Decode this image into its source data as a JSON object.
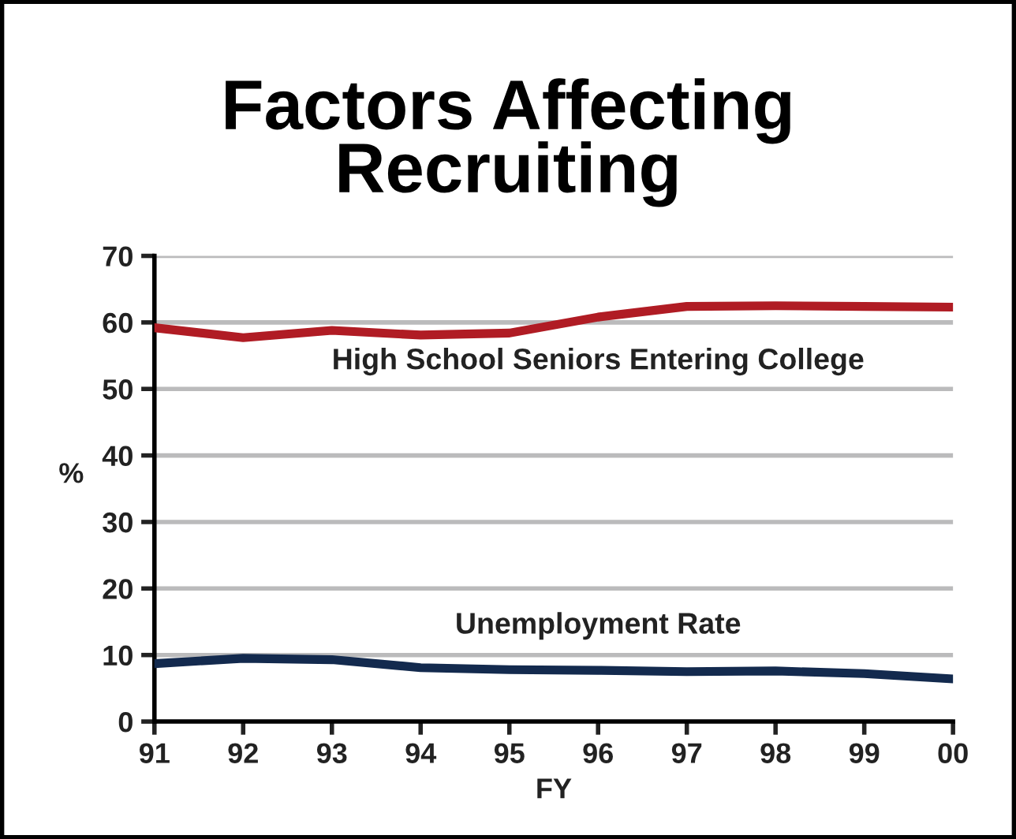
{
  "chart_data": {
    "type": "line",
    "title": "Factors Affecting\nRecruiting",
    "xlabel": "FY",
    "ylabel": "%",
    "x": [
      1991,
      1992,
      1993,
      1994,
      1995,
      1996,
      1997,
      1998,
      1999,
      2000
    ],
    "series": [
      {
        "name": "High School Seniors Entering College",
        "color": "#b01c24",
        "values": [
          59.2,
          57.7,
          58.8,
          58.1,
          58.4,
          60.8,
          62.4,
          62.5,
          62.4,
          62.3
        ]
      },
      {
        "name": "Unemployment Rate",
        "color": "#132a4e",
        "values": [
          8.7,
          9.5,
          9.3,
          8.1,
          7.8,
          7.7,
          7.5,
          7.6,
          7.2,
          6.4
        ]
      }
    ],
    "xlim": [
      1991,
      2000
    ],
    "ylim": [
      0,
      70
    ],
    "xticks": [
      {
        "value": 1991,
        "label": "91"
      },
      {
        "value": 1992,
        "label": "92"
      },
      {
        "value": 1993,
        "label": "93"
      },
      {
        "value": 1994,
        "label": "94"
      },
      {
        "value": 1995,
        "label": "95"
      },
      {
        "value": 1996,
        "label": "96"
      },
      {
        "value": 1997,
        "label": "97"
      },
      {
        "value": 1998,
        "label": "98"
      },
      {
        "value": 1999,
        "label": "99"
      },
      {
        "value": 2000,
        "label": "00"
      }
    ],
    "yticks": [
      0,
      10,
      20,
      30,
      40,
      50,
      60,
      70
    ],
    "grid": "y",
    "line_style": "solid"
  }
}
